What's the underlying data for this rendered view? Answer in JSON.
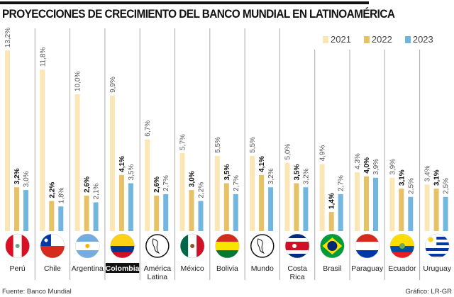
{
  "title": "PROYECCIONES DE CRECIMIENTO DEL BANCO MUNDIAL EN LATINOAMÉRICA",
  "source": "Fuente: Banco Mundial",
  "credit": "Gráfico: LR-GR",
  "chart_data": {
    "type": "bar",
    "title": "PROYECCIONES DE CRECIMIENTO DEL BANCO MUNDIAL EN LATINOAMÉRICA",
    "categories": [
      "Perú",
      "Chile",
      "Argentina",
      "Colombia",
      "América Latina",
      "México",
      "Bolivia",
      "Mundo",
      "Costa Rica",
      "Brasil",
      "Paraguay",
      "Ecuador",
      "Uruguay"
    ],
    "series": [
      {
        "name": "2021",
        "color": "#fbe7b5",
        "values": [
          13.2,
          11.8,
          10.0,
          9.9,
          6.7,
          5.7,
          5.5,
          5.5,
          5.0,
          4.9,
          4.3,
          3.9,
          3.4
        ]
      },
      {
        "name": "2022",
        "color": "#e6c166",
        "values": [
          3.2,
          2.2,
          2.6,
          4.1,
          2.6,
          3.0,
          3.5,
          4.1,
          3.5,
          1.4,
          4.0,
          3.1,
          3.1
        ]
      },
      {
        "name": "2023",
        "color": "#72b6e0",
        "values": [
          3.0,
          1.8,
          2.1,
          3.5,
          2.7,
          2.2,
          2.7,
          3.2,
          3.2,
          2.7,
          3.9,
          2.5,
          2.5
        ]
      }
    ],
    "value_format": "percent, comma decimal",
    "highlighted_category": "Colombia",
    "legend": "top-right",
    "grid": false
  }
}
